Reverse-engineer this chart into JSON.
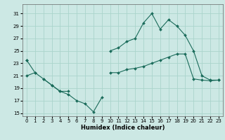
{
  "title": "",
  "xlabel": "Humidex (Indice chaleur)",
  "background_color": "#cce8e4",
  "grid_color": "#aad4cc",
  "line_color": "#1a6b5a",
  "x_values": [
    0,
    1,
    2,
    3,
    4,
    5,
    6,
    7,
    8,
    9,
    10,
    11,
    12,
    13,
    14,
    15,
    16,
    17,
    18,
    19,
    20,
    21,
    22,
    23
  ],
  "series1": [
    23.5,
    21.5,
    20.5,
    19.5,
    18.5,
    18.5,
    null,
    null,
    null,
    null,
    null,
    null,
    null,
    null,
    null,
    null,
    null,
    null,
    null,
    null,
    null,
    null,
    null,
    null
  ],
  "series2": [
    null,
    null,
    20.5,
    19.5,
    18.5,
    18.0,
    17.0,
    16.5,
    15.2,
    17.5,
    null,
    null,
    null,
    null,
    null,
    null,
    null,
    null,
    null,
    null,
    null,
    null,
    null,
    null
  ],
  "series3": [
    21.0,
    21.5,
    null,
    null,
    null,
    null,
    null,
    null,
    null,
    null,
    21.5,
    21.5,
    22.0,
    22.2,
    22.5,
    23.0,
    23.5,
    24.0,
    24.5,
    24.5,
    20.5,
    20.3,
    20.2,
    20.3
  ],
  "series4": [
    23.5,
    null,
    null,
    null,
    null,
    null,
    null,
    null,
    null,
    null,
    25.0,
    25.5,
    26.5,
    27.0,
    29.5,
    31.0,
    28.5,
    30.0,
    29.0,
    27.5,
    25.0,
    21.0,
    20.3,
    20.3
  ],
  "ylim": [
    14.5,
    32.5
  ],
  "yticks": [
    15,
    17,
    19,
    21,
    23,
    25,
    27,
    29,
    31
  ],
  "xlim": [
    -0.5,
    23.5
  ],
  "xlabel_fontsize": 6,
  "tick_fontsize": 5
}
